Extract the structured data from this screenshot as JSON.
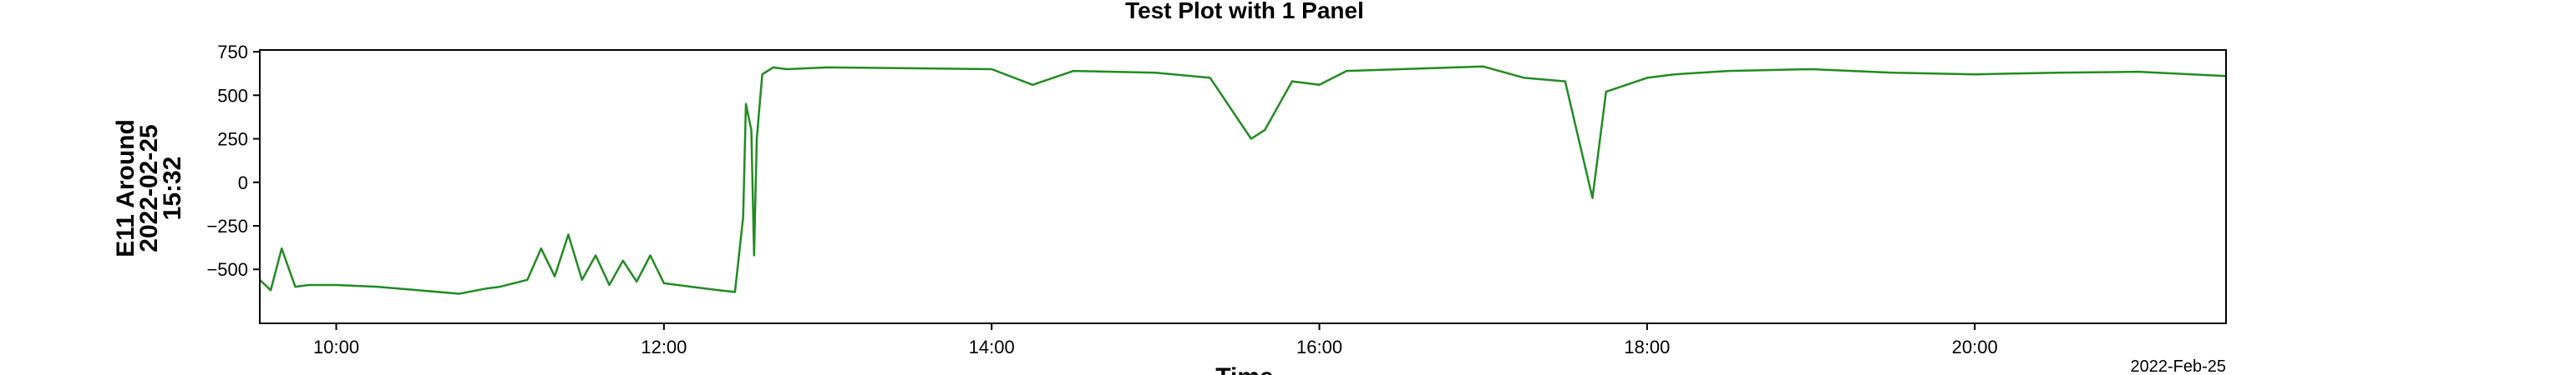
{
  "chart_data": {
    "type": "line",
    "title": "Test Plot with 1 Panel",
    "xlabel": "Time",
    "ylabel_lines": [
      "E11 Around",
      "2022-02-25",
      "15:32"
    ],
    "date_label": "2022-Feb-25",
    "xlim": [
      "09:32",
      "21:32"
    ],
    "ylim": [
      -810,
      760
    ],
    "x_ticks": [
      "10:00",
      "12:00",
      "14:00",
      "16:00",
      "18:00",
      "20:00"
    ],
    "y_ticks": [
      750,
      500,
      250,
      0,
      -250,
      -500
    ],
    "grid": false,
    "series": [
      {
        "color": "#228b22",
        "x": [
          "09:32",
          "09:36",
          "09:40",
          "09:45",
          "09:50",
          "10:00",
          "10:15",
          "10:30",
          "10:45",
          "10:55",
          "11:00",
          "11:10",
          "11:15",
          "11:20",
          "11:25",
          "11:30",
          "11:35",
          "11:40",
          "11:45",
          "11:50",
          "11:55",
          "12:00",
          "12:10",
          "12:20",
          "12:26",
          "12:29",
          "12:30",
          "12:32",
          "12:33",
          "12:34",
          "12:36",
          "12:38",
          "12:40",
          "12:45",
          "13:00",
          "13:30",
          "14:00",
          "14:15",
          "14:30",
          "15:00",
          "15:20",
          "15:35",
          "15:40",
          "15:50",
          "16:00",
          "16:10",
          "16:30",
          "17:00",
          "17:15",
          "17:30",
          "17:40",
          "17:45",
          "18:00",
          "18:10",
          "18:30",
          "19:00",
          "19:30",
          "20:00",
          "20:30",
          "21:00",
          "21:32"
        ],
        "y": [
          -560,
          -620,
          -380,
          -600,
          -590,
          -590,
          -600,
          -620,
          -640,
          -610,
          -600,
          -560,
          -380,
          -540,
          -300,
          -560,
          -420,
          -590,
          -450,
          -570,
          -420,
          -580,
          -600,
          -620,
          -630,
          -200,
          450,
          300,
          -420,
          250,
          620,
          640,
          660,
          650,
          660,
          655,
          650,
          560,
          640,
          630,
          600,
          250,
          300,
          580,
          560,
          640,
          650,
          665,
          600,
          580,
          -90,
          520,
          600,
          620,
          640,
          650,
          630,
          620,
          630,
          635,
          610
        ]
      }
    ]
  }
}
